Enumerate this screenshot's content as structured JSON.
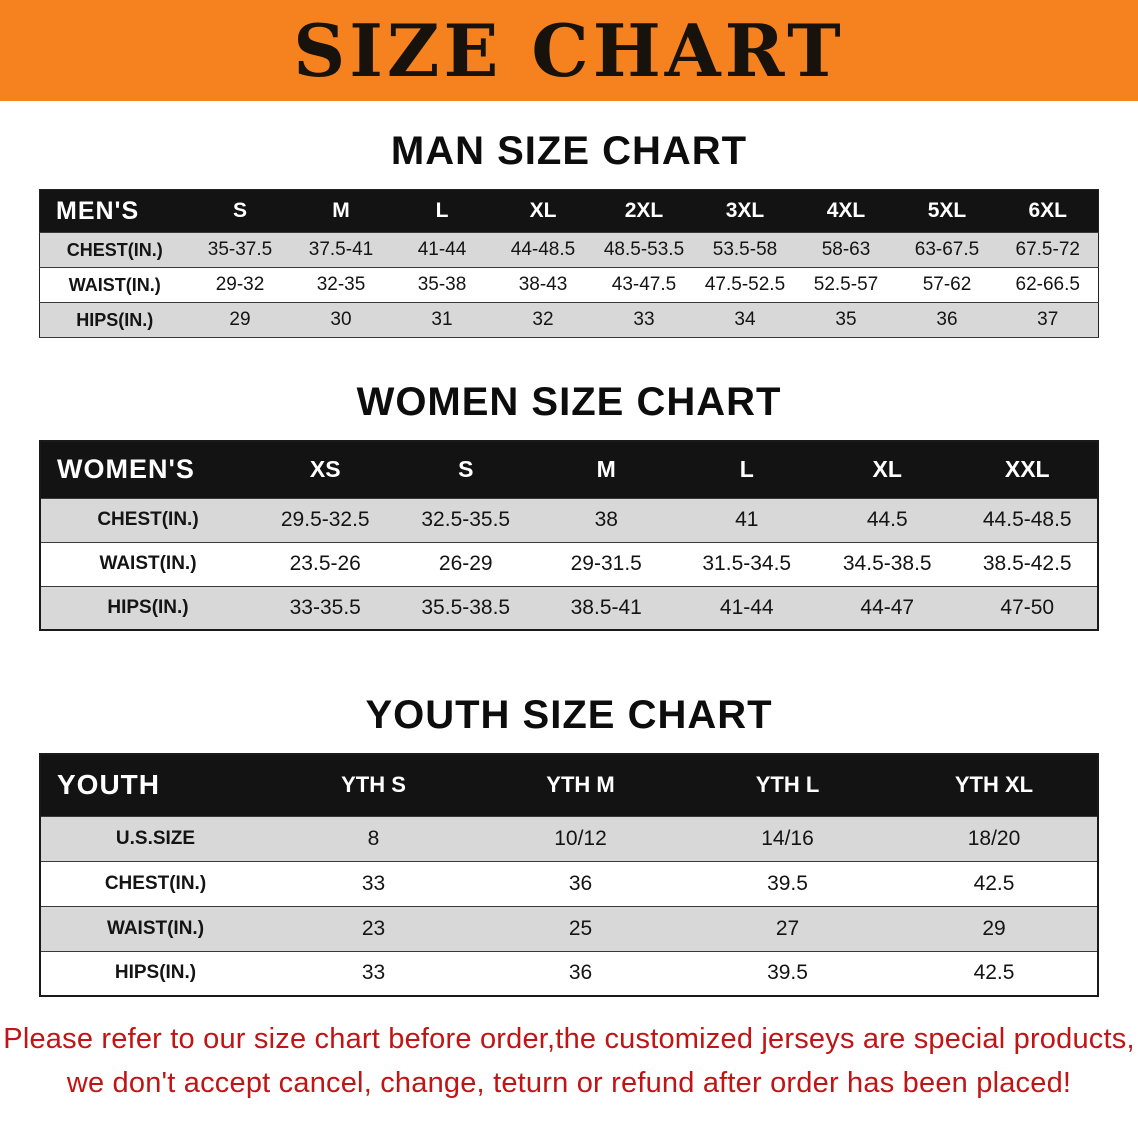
{
  "banner": {
    "title": "SIZE CHART"
  },
  "colors": {
    "banner_bg": "#F5821F",
    "header_bg": "#131313",
    "row_gray": "#D8D8D8",
    "note_red": "#C11414"
  },
  "chart_data": [
    {
      "type": "table",
      "title": "MAN SIZE CHART",
      "columns": [
        "MEN'S",
        "S",
        "M",
        "L",
        "XL",
        "2XL",
        "3XL",
        "4XL",
        "5XL",
        "6XL"
      ],
      "rows": [
        [
          "CHEST(IN.)",
          "35-37.5",
          "37.5-41",
          "41-44",
          "44-48.5",
          "48.5-53.5",
          "53.5-58",
          "58-63",
          "63-67.5",
          "67.5-72"
        ],
        [
          "WAIST(IN.)",
          "29-32",
          "32-35",
          "35-38",
          "38-43",
          "43-47.5",
          "47.5-52.5",
          "52.5-57",
          "57-62",
          "62-66.5"
        ],
        [
          "HIPS(IN.)",
          "29",
          "30",
          "31",
          "32",
          "33",
          "34",
          "35",
          "36",
          "37"
        ]
      ]
    },
    {
      "type": "table",
      "title": "WOMEN SIZE CHART",
      "columns": [
        "WOMEN'S",
        "XS",
        "S",
        "M",
        "L",
        "XL",
        "XXL"
      ],
      "rows": [
        [
          "CHEST(IN.)",
          "29.5-32.5",
          "32.5-35.5",
          "38",
          "41",
          "44.5",
          "44.5-48.5"
        ],
        [
          "WAIST(IN.)",
          "23.5-26",
          "26-29",
          "29-31.5",
          "31.5-34.5",
          "34.5-38.5",
          "38.5-42.5"
        ],
        [
          "HIPS(IN.)",
          "33-35.5",
          "35.5-38.5",
          "38.5-41",
          "41-44",
          "44-47",
          "47-50"
        ]
      ]
    },
    {
      "type": "table",
      "title": "YOUTH SIZE CHART",
      "columns": [
        "YOUTH",
        "YTH S",
        "YTH M",
        "YTH L",
        "YTH XL"
      ],
      "rows": [
        [
          "U.S.SIZE",
          "8",
          "10/12",
          "14/16",
          "18/20"
        ],
        [
          "CHEST(IN.)",
          "33",
          "36",
          "39.5",
          "42.5"
        ],
        [
          "WAIST(IN.)",
          "23",
          "25",
          "27",
          "29"
        ],
        [
          "HIPS(IN.)",
          "33",
          "36",
          "39.5",
          "42.5"
        ]
      ]
    }
  ],
  "note": {
    "line1": "Please refer to our size chart before order,the customized jerseys are special products,",
    "line2": "we don't accept cancel, change, teturn or refund after order has been placed!"
  }
}
